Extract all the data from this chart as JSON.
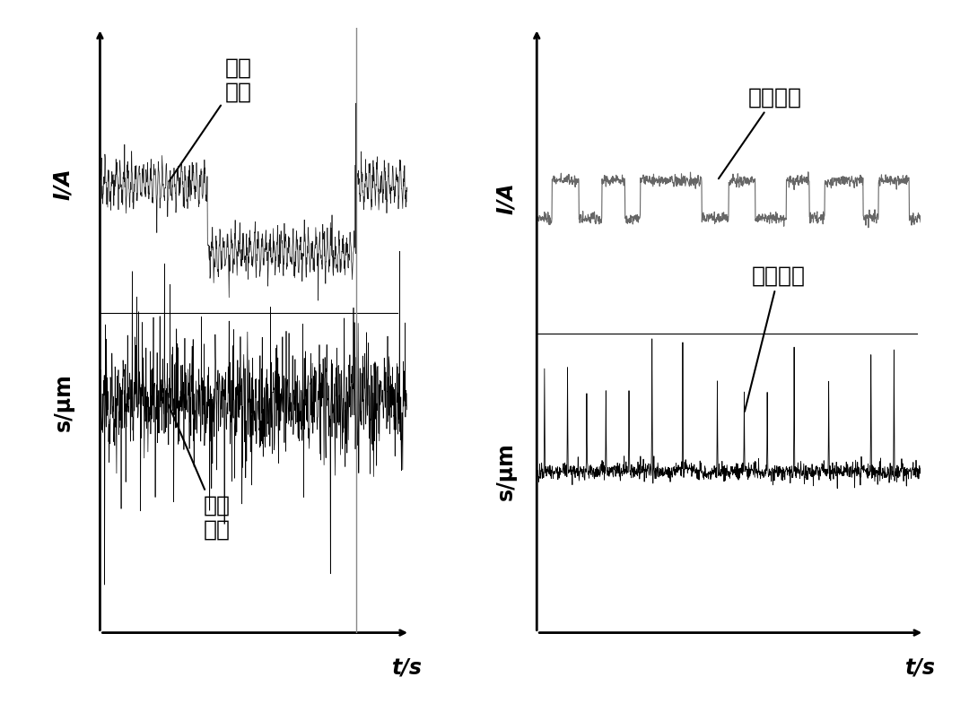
{
  "fig_width": 10.8,
  "fig_height": 7.84,
  "bg_color": "#ffffff",
  "font_color": "#000000",
  "left_ylabel_top": "I/A",
  "left_ylabel_bottom": "s/μm",
  "right_ylabel_top": "I/A",
  "right_ylabel_bottom": "s/μm",
  "xlabel": "t/s",
  "label_current_left": "电流\n曲线",
  "label_vibration_left": "振动\n曲线",
  "label_current_right": "电流曲线",
  "label_vibration_right": "振动曲线",
  "annotation_fontsize": 18,
  "axis_label_fontsize": 17,
  "line_color_left_current": "#1a1a1a",
  "line_color_left_vibration": "#000000",
  "line_color_right_current": "#666666",
  "line_color_right_vibration": "#000000",
  "vertical_line_color": "#888888"
}
